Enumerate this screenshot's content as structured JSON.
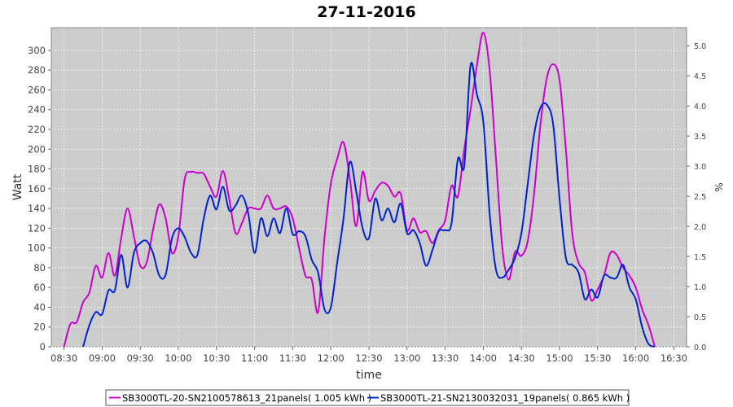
{
  "chart_data": {
    "type": "line",
    "title": "27-11-2016",
    "xlabel": "time",
    "ylabel": "Watt",
    "y2label": "%",
    "x_ticks": [
      "08:30",
      "09:00",
      "09:30",
      "10:00",
      "10:30",
      "11:00",
      "11:30",
      "12:00",
      "12:30",
      "13:00",
      "13:30",
      "14:00",
      "14:30",
      "15:00",
      "15:30",
      "16:00",
      "16:30"
    ],
    "xlim": [
      "08:20",
      "16:40"
    ],
    "ylim": [
      0,
      323
    ],
    "y_ticks": [
      0,
      20,
      40,
      60,
      80,
      100,
      120,
      140,
      160,
      180,
      200,
      220,
      240,
      260,
      280,
      300
    ],
    "y2lim": [
      0,
      5.3
    ],
    "y2_ticks": [
      "0.0",
      "0.5",
      "1.0",
      "1.5",
      "2.0",
      "2.5",
      "3.0",
      "3.5",
      "4.0",
      "4.5",
      "5.0"
    ],
    "grid": true,
    "legend_position": "bottom",
    "series": [
      {
        "name": "SB3000TL-20-SN2100578613_21panels( 1.005 kWh )",
        "color": "#cc00cc",
        "points": [
          [
            "08:30",
            0
          ],
          [
            "08:35",
            23
          ],
          [
            "08:40",
            25
          ],
          [
            "08:45",
            45
          ],
          [
            "08:50",
            55
          ],
          [
            "08:55",
            82
          ],
          [
            "09:00",
            70
          ],
          [
            "09:05",
            95
          ],
          [
            "09:10",
            72
          ],
          [
            "09:15",
            110
          ],
          [
            "09:20",
            140
          ],
          [
            "09:25",
            112
          ],
          [
            "09:30",
            82
          ],
          [
            "09:35",
            85
          ],
          [
            "09:40",
            118
          ],
          [
            "09:45",
            144
          ],
          [
            "09:50",
            130
          ],
          [
            "09:55",
            95
          ],
          [
            "10:00",
            112
          ],
          [
            "10:05",
            170
          ],
          [
            "10:10",
            177
          ],
          [
            "10:15",
            176
          ],
          [
            "10:20",
            175
          ],
          [
            "10:25",
            162
          ],
          [
            "10:30",
            152
          ],
          [
            "10:35",
            178
          ],
          [
            "10:40",
            150
          ],
          [
            "10:45",
            115
          ],
          [
            "10:50",
            125
          ],
          [
            "10:55",
            140
          ],
          [
            "11:00",
            140
          ],
          [
            "11:05",
            140
          ],
          [
            "11:10",
            153
          ],
          [
            "11:15",
            140
          ],
          [
            "11:20",
            140
          ],
          [
            "11:25",
            142
          ],
          [
            "11:30",
            130
          ],
          [
            "11:35",
            100
          ],
          [
            "11:40",
            72
          ],
          [
            "11:45",
            68
          ],
          [
            "11:50",
            35
          ],
          [
            "11:55",
            110
          ],
          [
            "12:00",
            165
          ],
          [
            "12:05",
            190
          ],
          [
            "12:10",
            207
          ],
          [
            "12:15",
            170
          ],
          [
            "12:20",
            122
          ],
          [
            "12:25",
            177
          ],
          [
            "12:30",
            148
          ],
          [
            "12:35",
            158
          ],
          [
            "12:40",
            166
          ],
          [
            "12:45",
            163
          ],
          [
            "12:50",
            152
          ],
          [
            "12:55",
            155
          ],
          [
            "13:00",
            118
          ],
          [
            "13:05",
            130
          ],
          [
            "13:10",
            116
          ],
          [
            "13:15",
            117
          ],
          [
            "13:20",
            105
          ],
          [
            "13:25",
            118
          ],
          [
            "13:30",
            128
          ],
          [
            "13:35",
            163
          ],
          [
            "13:40",
            152
          ],
          [
            "13:45",
            200
          ],
          [
            "13:50",
            240
          ],
          [
            "13:55",
            285
          ],
          [
            "14:00",
            318
          ],
          [
            "14:05",
            280
          ],
          [
            "14:10",
            190
          ],
          [
            "14:15",
            100
          ],
          [
            "14:20",
            68
          ],
          [
            "14:25",
            96
          ],
          [
            "14:30",
            92
          ],
          [
            "14:35",
            107
          ],
          [
            "14:40",
            155
          ],
          [
            "14:45",
            225
          ],
          [
            "14:50",
            272
          ],
          [
            "14:55",
            286
          ],
          [
            "15:00",
            270
          ],
          [
            "15:05",
            200
          ],
          [
            "15:10",
            115
          ],
          [
            "15:15",
            85
          ],
          [
            "15:20",
            75
          ],
          [
            "15:25",
            47
          ],
          [
            "15:30",
            58
          ],
          [
            "15:35",
            72
          ],
          [
            "15:40",
            95
          ],
          [
            "15:45",
            93
          ],
          [
            "15:50",
            80
          ],
          [
            "15:55",
            72
          ],
          [
            "16:00",
            60
          ],
          [
            "16:05",
            38
          ],
          [
            "16:10",
            22
          ],
          [
            "16:15",
            0
          ]
        ]
      },
      {
        "name": "SB3000TL-21-SN2130032031_19panels( 0.865 kWh )",
        "color": "#0022cc",
        "points": [
          [
            "08:45",
            0
          ],
          [
            "08:50",
            22
          ],
          [
            "08:55",
            35
          ],
          [
            "09:00",
            33
          ],
          [
            "09:05",
            57
          ],
          [
            "09:10",
            57
          ],
          [
            "09:15",
            93
          ],
          [
            "09:20",
            60
          ],
          [
            "09:25",
            95
          ],
          [
            "09:30",
            105
          ],
          [
            "09:35",
            107
          ],
          [
            "09:40",
            95
          ],
          [
            "09:45",
            72
          ],
          [
            "09:50",
            73
          ],
          [
            "09:55",
            110
          ],
          [
            "10:00",
            120
          ],
          [
            "10:05",
            111
          ],
          [
            "10:10",
            95
          ],
          [
            "10:15",
            93
          ],
          [
            "10:20",
            130
          ],
          [
            "10:25",
            153
          ],
          [
            "10:30",
            139
          ],
          [
            "10:35",
            162
          ],
          [
            "10:40",
            138
          ],
          [
            "10:45",
            143
          ],
          [
            "10:50",
            153
          ],
          [
            "10:55",
            135
          ],
          [
            "11:00",
            95
          ],
          [
            "11:05",
            130
          ],
          [
            "11:10",
            112
          ],
          [
            "11:15",
            130
          ],
          [
            "11:20",
            115
          ],
          [
            "11:25",
            140
          ],
          [
            "11:30",
            114
          ],
          [
            "11:35",
            117
          ],
          [
            "11:40",
            112
          ],
          [
            "11:45",
            88
          ],
          [
            "11:50",
            75
          ],
          [
            "11:55",
            38
          ],
          [
            "12:00",
            40
          ],
          [
            "12:05",
            85
          ],
          [
            "12:10",
            130
          ],
          [
            "12:15",
            187
          ],
          [
            "12:20",
            157
          ],
          [
            "12:25",
            120
          ],
          [
            "12:30",
            110
          ],
          [
            "12:35",
            150
          ],
          [
            "12:40",
            128
          ],
          [
            "12:45",
            140
          ],
          [
            "12:50",
            126
          ],
          [
            "12:55",
            145
          ],
          [
            "13:00",
            115
          ],
          [
            "13:05",
            118
          ],
          [
            "13:10",
            105
          ],
          [
            "13:15",
            82
          ],
          [
            "13:20",
            98
          ],
          [
            "13:25",
            117
          ],
          [
            "13:30",
            118
          ],
          [
            "13:35",
            125
          ],
          [
            "13:40",
            190
          ],
          [
            "13:45",
            183
          ],
          [
            "13:50",
            285
          ],
          [
            "13:55",
            255
          ],
          [
            "14:00",
            228
          ],
          [
            "14:05",
            135
          ],
          [
            "14:10",
            78
          ],
          [
            "14:15",
            70
          ],
          [
            "14:20",
            78
          ],
          [
            "14:25",
            90
          ],
          [
            "14:30",
            115
          ],
          [
            "14:35",
            165
          ],
          [
            "14:40",
            215
          ],
          [
            "14:45",
            242
          ],
          [
            "14:50",
            245
          ],
          [
            "14:55",
            225
          ],
          [
            "15:00",
            150
          ],
          [
            "15:05",
            90
          ],
          [
            "15:10",
            83
          ],
          [
            "15:15",
            75
          ],
          [
            "15:20",
            48
          ],
          [
            "15:25",
            58
          ],
          [
            "15:30",
            50
          ],
          [
            "15:35",
            72
          ],
          [
            "15:40",
            70
          ],
          [
            "15:45",
            70
          ],
          [
            "15:50",
            83
          ],
          [
            "15:55",
            60
          ],
          [
            "16:00",
            48
          ],
          [
            "16:05",
            20
          ],
          [
            "16:10",
            3
          ],
          [
            "16:15",
            0
          ]
        ]
      }
    ]
  }
}
